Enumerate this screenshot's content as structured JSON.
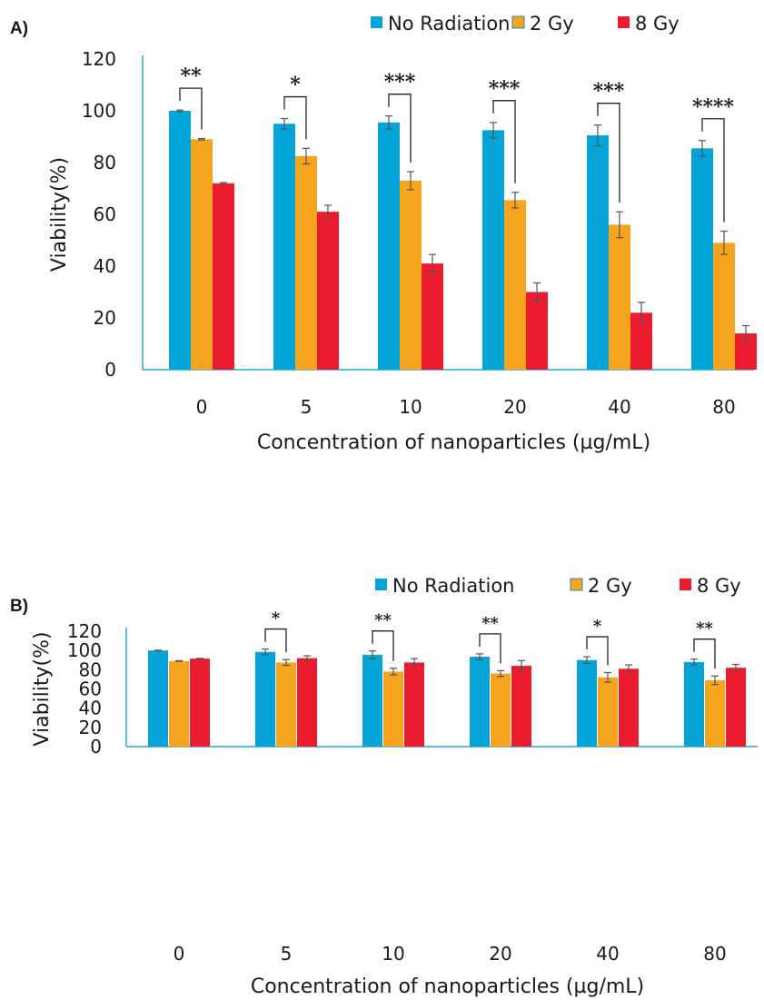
{
  "chart_data": [
    {
      "panel_label": "A)",
      "type": "bar",
      "categories": [
        "0",
        "5",
        "10",
        "20",
        "40",
        "80"
      ],
      "xlabel": "Concentration of nanoparticles (µg/mL)",
      "ylabel": "Viability(%)",
      "ylim": [
        0,
        120
      ],
      "yticks": [
        "0",
        "20",
        "40",
        "60",
        "80",
        "100",
        "120"
      ],
      "legend_position": "top-right",
      "grid": false,
      "series": [
        {
          "name": "No Radiation",
          "color": "#04a3d8",
          "values": [
            100,
            95,
            95.5,
            92.5,
            90.5,
            85.5
          ],
          "errors": [
            0.3,
            2,
            2.5,
            3,
            4,
            3
          ]
        },
        {
          "name": "2 Gy",
          "color": "#f6a31d",
          "values": [
            89,
            82.5,
            73,
            65.5,
            56,
            49
          ],
          "errors": [
            0.3,
            3,
            3.5,
            3,
            5,
            4.5
          ]
        },
        {
          "name": "8 Gy",
          "color": "#ea1c2d",
          "values": [
            72,
            61,
            41,
            30,
            22,
            14
          ],
          "errors": [
            0.3,
            2.5,
            3.5,
            3.5,
            4,
            3
          ]
        }
      ],
      "significance": [
        "**",
        "*",
        "***",
        "***",
        "***",
        "****"
      ]
    },
    {
      "panel_label": "B)",
      "type": "bar",
      "categories": [
        "0",
        "5",
        "10",
        "20",
        "40",
        "80"
      ],
      "xlabel": "Concentration of nanoparticles (µg/mL)",
      "ylabel": "Viability(%)",
      "ylim": [
        0,
        120
      ],
      "yticks": [
        "0",
        "20",
        "40",
        "60",
        "80",
        "100",
        "120"
      ],
      "legend_position": "top-right",
      "grid": false,
      "series": [
        {
          "name": "No Radiation",
          "color": "#04a3d8",
          "values": [
            100,
            98.5,
            95.5,
            93.5,
            90,
            88
          ],
          "errors": [
            0.3,
            3,
            4,
            3,
            3.5,
            3
          ]
        },
        {
          "name": "2 Gy",
          "color": "#f6a31d",
          "values": [
            89,
            87.5,
            78,
            76,
            72,
            69
          ],
          "errors": [
            0.3,
            3,
            3.5,
            3,
            5,
            4.5
          ]
        },
        {
          "name": "8 Gy",
          "color": "#ea1c2d",
          "values": [
            91.5,
            92,
            87.5,
            84,
            81,
            82
          ],
          "errors": [
            0.3,
            2.5,
            4,
            5.5,
            4,
            3.5
          ]
        }
      ],
      "significance": [
        "",
        "*",
        "**",
        "**",
        "*",
        "**"
      ]
    }
  ]
}
